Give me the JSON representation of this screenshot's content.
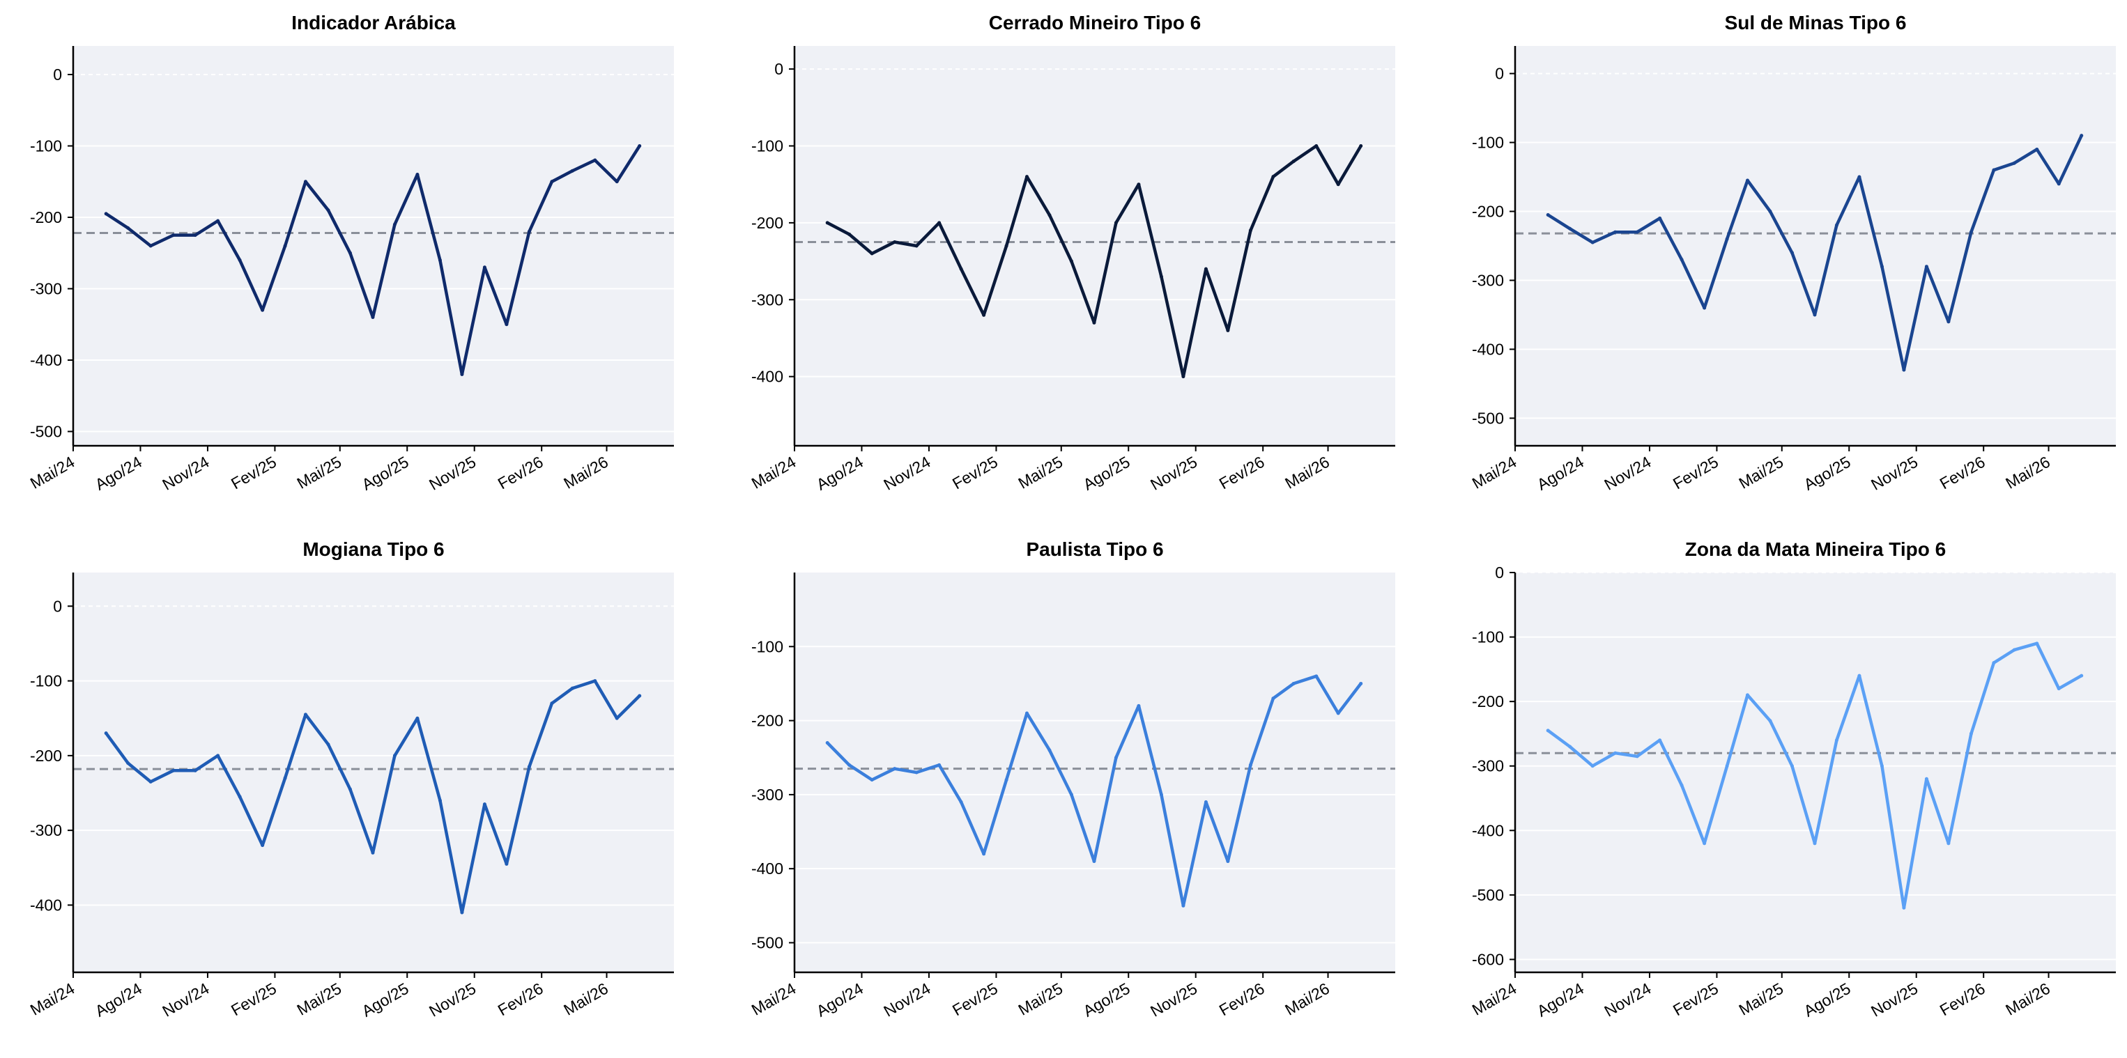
{
  "x_ticks": [
    "Mai/24",
    "Ago/24",
    "Nov/24",
    "Fev/25",
    "Mai/25",
    "Ago/25",
    "Nov/25",
    "Fev/26",
    "Mai/26"
  ],
  "colors": {
    "plot_background": "#eff1f6",
    "grid": "#ffffff",
    "mean_line": "#8a8f99"
  },
  "chart_data": [
    {
      "type": "line",
      "title": "Indicador Arábica",
      "color": "#0f2a6b",
      "ylim": [
        -520,
        40
      ],
      "yticks": [
        0,
        -100,
        -200,
        -300,
        -400,
        -500
      ],
      "mean": -222,
      "grid": true,
      "x": [
        "Jun/24",
        "Jul/24",
        "Ago/24",
        "Set/24",
        "Out/24",
        "Nov/24",
        "Dez/24",
        "Jan/25",
        "Fev/25",
        "Mar/25",
        "Abr/25",
        "Mai/25",
        "Jun/25",
        "Jul/25",
        "Ago/25",
        "Set/25",
        "Out/25",
        "Nov/25",
        "Dez/25",
        "Jan/26",
        "Fev/26",
        "Mar/26",
        "Abr/26",
        "Mai/26",
        "Jun/26"
      ],
      "values": [
        -195,
        -215,
        -240,
        -225,
        -225,
        -205,
        -260,
        -330,
        -240,
        -150,
        -190,
        -250,
        -340,
        -210,
        -140,
        -260,
        -420,
        -270,
        -350,
        -220,
        -150,
        -135,
        -120,
        -150,
        -100
      ]
    },
    {
      "type": "line",
      "title": "Cerrado Mineiro Tipo 6",
      "color": "#0a1a3a",
      "ylim": [
        -490,
        30
      ],
      "yticks": [
        0,
        -100,
        -200,
        -300,
        -400
      ],
      "mean": -225,
      "grid": true,
      "x": [
        "Jun/24",
        "Jul/24",
        "Ago/24",
        "Set/24",
        "Out/24",
        "Nov/24",
        "Dez/24",
        "Jan/25",
        "Fev/25",
        "Mar/25",
        "Abr/25",
        "Mai/25",
        "Jun/25",
        "Jul/25",
        "Ago/25",
        "Set/25",
        "Out/25",
        "Nov/25",
        "Dez/25",
        "Jan/26",
        "Fev/26",
        "Mar/26",
        "Abr/26",
        "Mai/26",
        "Jun/26"
      ],
      "values": [
        -200,
        -215,
        -240,
        -225,
        -230,
        -200,
        -260,
        -320,
        -230,
        -140,
        -190,
        -250,
        -330,
        -200,
        -150,
        -270,
        -400,
        -260,
        -340,
        -210,
        -140,
        -120,
        -100,
        -150,
        -100
      ]
    },
    {
      "type": "line",
      "title": "Sul de Minas Tipo 6",
      "color": "#1a4590",
      "ylim": [
        -540,
        40
      ],
      "yticks": [
        0,
        -100,
        -200,
        -300,
        -400,
        -500
      ],
      "mean": -232,
      "grid": true,
      "x": [
        "Jun/24",
        "Jul/24",
        "Ago/24",
        "Set/24",
        "Out/24",
        "Nov/24",
        "Dez/24",
        "Jan/25",
        "Fev/25",
        "Mar/25",
        "Abr/25",
        "Mai/25",
        "Jun/25",
        "Jul/25",
        "Ago/25",
        "Set/25",
        "Out/25",
        "Nov/25",
        "Dez/25",
        "Jan/26",
        "Fev/26",
        "Mar/26",
        "Abr/26",
        "Mai/26",
        "Jun/26"
      ],
      "values": [
        -205,
        -225,
        -245,
        -230,
        -230,
        -210,
        -270,
        -340,
        -240,
        -155,
        -200,
        -260,
        -350,
        -220,
        -150,
        -280,
        -430,
        -280,
        -360,
        -230,
        -140,
        -130,
        -110,
        -160,
        -90
      ]
    },
    {
      "type": "line",
      "title": "Mogiana Tipo 6",
      "color": "#1f5cb5",
      "ylim": [
        -490,
        45
      ],
      "yticks": [
        0,
        -100,
        -200,
        -300,
        -400
      ],
      "mean": -218,
      "grid": true,
      "x": [
        "Jun/24",
        "Jul/24",
        "Ago/24",
        "Set/24",
        "Out/24",
        "Nov/24",
        "Dez/24",
        "Jan/25",
        "Fev/25",
        "Mar/25",
        "Abr/25",
        "Mai/25",
        "Jun/25",
        "Jul/25",
        "Ago/25",
        "Set/25",
        "Out/25",
        "Nov/25",
        "Dez/25",
        "Jan/26",
        "Fev/26",
        "Mar/26",
        "Abr/26",
        "Mai/26",
        "Jun/26"
      ],
      "values": [
        -170,
        -210,
        -235,
        -220,
        -220,
        -200,
        -255,
        -320,
        -230,
        -145,
        -185,
        -245,
        -330,
        -200,
        -150,
        -260,
        -410,
        -265,
        -345,
        -215,
        -130,
        -110,
        -100,
        -150,
        -120
      ]
    },
    {
      "type": "line",
      "title": "Paulista Tipo 6",
      "color": "#3b7fdc",
      "ylim": [
        -540,
        0
      ],
      "yticks": [
        -100,
        -200,
        -300,
        -400,
        -500
      ],
      "mean": -265,
      "grid": true,
      "x": [
        "Jun/24",
        "Jul/24",
        "Ago/24",
        "Set/24",
        "Out/24",
        "Nov/24",
        "Dez/24",
        "Jan/25",
        "Fev/25",
        "Mar/25",
        "Abr/25",
        "Mai/25",
        "Jun/25",
        "Jul/25",
        "Ago/25",
        "Set/25",
        "Out/25",
        "Nov/25",
        "Dez/25",
        "Jan/26",
        "Fev/26",
        "Mar/26",
        "Abr/26",
        "Mai/26",
        "Jun/26"
      ],
      "values": [
        -230,
        -260,
        -280,
        -265,
        -270,
        -260,
        -310,
        -380,
        -280,
        -190,
        -240,
        -300,
        -390,
        -250,
        -180,
        -300,
        -450,
        -310,
        -390,
        -260,
        -170,
        -150,
        -140,
        -190,
        -150
      ]
    },
    {
      "type": "line",
      "title": "Zona da Mata Mineira Tipo 6",
      "color": "#5ba0f5",
      "ylim": [
        -620,
        0
      ],
      "yticks": [
        0,
        -100,
        -200,
        -300,
        -400,
        -500,
        -600
      ],
      "mean": -280,
      "grid": true,
      "x": [
        "Jun/24",
        "Jul/24",
        "Ago/24",
        "Set/24",
        "Out/24",
        "Nov/24",
        "Dez/24",
        "Jan/25",
        "Fev/25",
        "Mar/25",
        "Abr/25",
        "Mai/25",
        "Jun/25",
        "Jul/25",
        "Ago/25",
        "Set/25",
        "Out/25",
        "Nov/25",
        "Dez/25",
        "Jan/26",
        "Fev/26",
        "Mar/26",
        "Abr/26",
        "Mai/26",
        "Jun/26"
      ],
      "values": [
        -245,
        -270,
        -300,
        -280,
        -285,
        -260,
        -330,
        -420,
        -300,
        -190,
        -230,
        -300,
        -420,
        -260,
        -160,
        -300,
        -520,
        -320,
        -420,
        -250,
        -140,
        -120,
        -110,
        -180,
        -160
      ]
    }
  ]
}
